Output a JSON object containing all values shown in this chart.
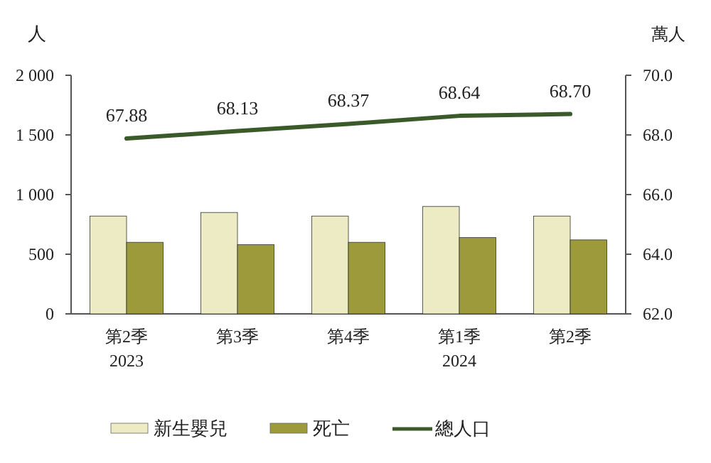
{
  "chart_data": {
    "type": "bar",
    "ylabel": "人",
    "y2label": "萬人",
    "categories": [
      "第2季\n2023",
      "第3季",
      "第4季",
      "第1季\n2024",
      "第2季"
    ],
    "series": [
      {
        "name": "新生嬰兒",
        "color": "#ecebc4",
        "values": [
          820,
          850,
          820,
          900,
          820
        ]
      },
      {
        "name": "死亡",
        "color": "#9c9a3a",
        "values": [
          600,
          580,
          600,
          640,
          620
        ]
      },
      {
        "name": "總人口",
        "color": "#3b5a2a",
        "type": "line",
        "axis": "y2",
        "values": [
          67.88,
          68.13,
          68.37,
          68.64,
          68.7
        ],
        "value_labels": [
          "67.88",
          "68.13",
          "68.37",
          "68.64",
          "68.70"
        ]
      }
    ],
    "ylim": [
      0,
      2000
    ],
    "yticks": [
      0,
      {
        "value": 500,
        "label": "500"
      },
      {
        "value": 1000,
        "label": "1 000"
      },
      {
        "value": 1500,
        "label": "1 500"
      },
      {
        "value": 2000,
        "label": "2 000"
      }
    ],
    "y2lim": [
      62,
      70
    ],
    "y2ticks": [
      {
        "value": 62,
        "label": "62.0"
      },
      {
        "value": 64,
        "label": "64.0"
      },
      {
        "value": 66,
        "label": "66.0"
      },
      {
        "value": 68,
        "label": "68.0"
      },
      {
        "value": 70,
        "label": "70.0"
      }
    ],
    "legend": "bottom"
  }
}
